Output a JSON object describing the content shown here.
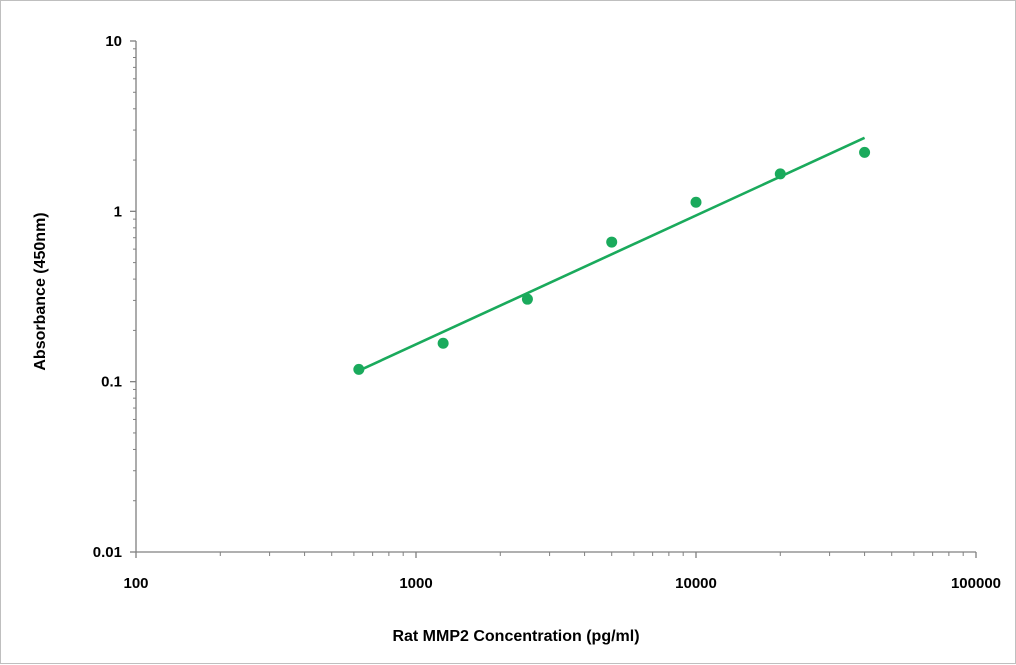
{
  "chart_data": {
    "type": "scatter",
    "title": "",
    "xlabel": "Rat MMP2 Concentration (pg/ml)",
    "ylabel": "Absorbance (450nm)",
    "x_scale": "log",
    "y_scale": "log",
    "xlim": [
      100,
      100000
    ],
    "ylim": [
      0.01,
      10
    ],
    "x_ticks": [
      "100",
      "1000",
      "10000",
      "100000"
    ],
    "y_ticks": [
      "0.01",
      "0.1",
      "1",
      "10"
    ],
    "grid": false,
    "legend": "none",
    "series": [
      {
        "x": [
          625,
          1250,
          2500,
          5000,
          10000,
          20000,
          40000
        ],
        "y": [
          0.118,
          0.168,
          0.305,
          0.66,
          1.13,
          1.66,
          2.22
        ]
      }
    ],
    "trendline": {
      "type": "power",
      "x": [
        625,
        40000
      ],
      "y": [
        0.116,
        2.7
      ]
    },
    "colors": {
      "marker": "#1aaa5c",
      "line": "#1aaa5c",
      "axis": "#808080"
    }
  }
}
